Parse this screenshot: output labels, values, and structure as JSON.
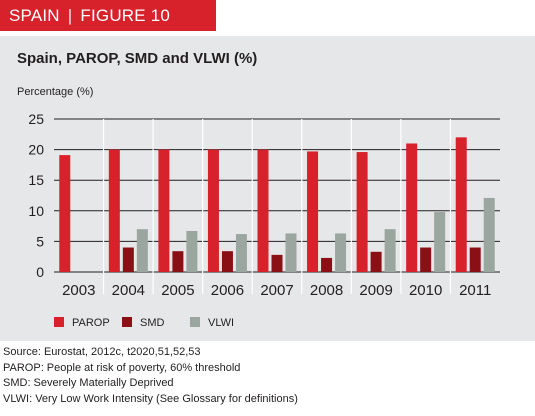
{
  "header": {
    "country": "SPAIN",
    "figure": "FIGURE 10"
  },
  "colors": {
    "header_bg": "#d7212b",
    "panel_bg": "#e6e7e8",
    "parop": "#d7212b",
    "smd": "#8b1015",
    "vlwi": "#9ca6a1",
    "gridline": "#231f20"
  },
  "chart_data": {
    "type": "bar",
    "title": "Spain, PAROP, SMD and VLWI (%)",
    "ylabel": "Percentage (%)",
    "xlabel": "",
    "ylim": [
      0,
      25
    ],
    "yticks": [
      0,
      5,
      10,
      15,
      20,
      25
    ],
    "grid": true,
    "legend_position": "bottom-left",
    "categories": [
      "2003",
      "2004",
      "2005",
      "2006",
      "2007",
      "2008",
      "2009",
      "2010",
      "2011"
    ],
    "series": [
      {
        "name": "PAROP",
        "color": "#d7212b",
        "values": [
          19.1,
          20.0,
          20.0,
          20.0,
          20.0,
          19.7,
          19.6,
          21.0,
          22.0
        ]
      },
      {
        "name": "SMD",
        "color": "#8b1015",
        "values": [
          null,
          4.0,
          3.4,
          3.4,
          2.8,
          2.3,
          3.3,
          4.0,
          4.0
        ]
      },
      {
        "name": "VLWI",
        "color": "#9ca6a1",
        "values": [
          null,
          7.0,
          6.7,
          6.2,
          6.3,
          6.3,
          7.0,
          9.8,
          12.1
        ]
      }
    ]
  },
  "footnotes": [
    "Source: Eurostat, 2012c, t2020,51,52,53",
    "PAROP: People at risk of poverty, 60% threshold",
    "SMD: Severely Materially Deprived",
    "VLWI: Very Low Work Intensity (See Glossary for definitions)"
  ]
}
